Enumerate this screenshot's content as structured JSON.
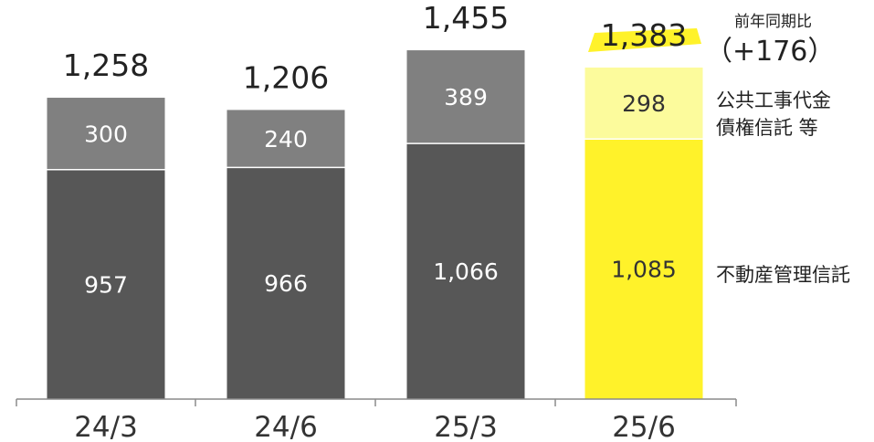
{
  "chart_data": {
    "type": "bar",
    "stacked": true,
    "categories": [
      "24/3",
      "24/6",
      "25/3",
      "25/6"
    ],
    "series": [
      {
        "name": "不動産管理信託",
        "values": [
          957,
          966,
          1066,
          1085
        ],
        "value_labels": [
          "957",
          "966",
          "1,066",
          "1,085"
        ],
        "colors": [
          "#575757",
          "#575757",
          "#575757",
          "#fff22a"
        ],
        "label_colors": [
          "#ffffff",
          "#ffffff",
          "#ffffff",
          "#333333"
        ]
      },
      {
        "name_lines": [
          "公共工事代金",
          "債権信託 等"
        ],
        "values": [
          300,
          240,
          389,
          298
        ],
        "value_labels": [
          "300",
          "240",
          "389",
          "298"
        ],
        "colors": [
          "#808080",
          "#808080",
          "#808080",
          "#fcfb9c"
        ],
        "label_colors": [
          "#ffffff",
          "#ffffff",
          "#ffffff",
          "#333333"
        ]
      }
    ],
    "totals": [
      1258,
      1206,
      1455,
      1383
    ],
    "total_labels": [
      "1,258",
      "1,206",
      "1,455",
      "1,383"
    ],
    "highlight_index": 3,
    "highlight_color": "#fff22a",
    "yoy": {
      "title": "前年同期比",
      "value": "（+176）"
    },
    "ylim": [
      0,
      1600
    ],
    "grid": false,
    "legend": "right, inline labels"
  }
}
